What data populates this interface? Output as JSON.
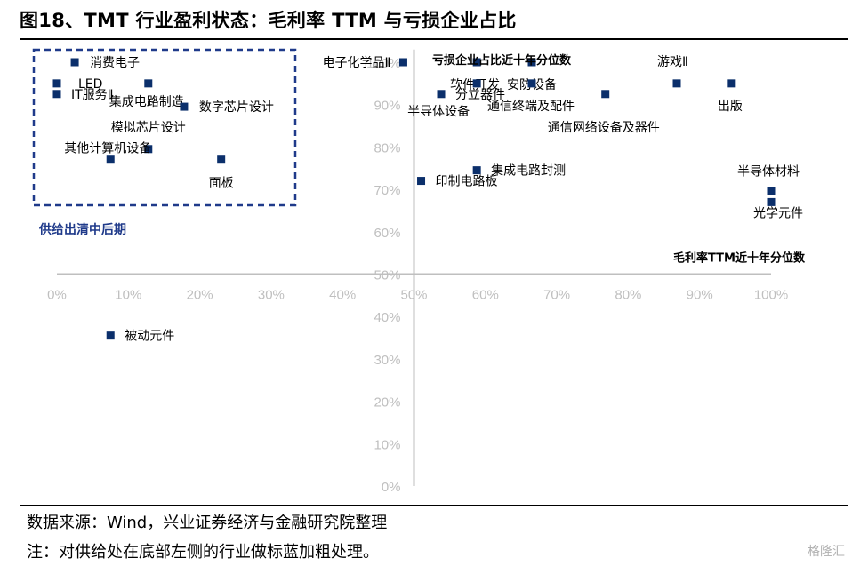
{
  "header": {
    "title": "图18、TMT 行业盈利状态：毛利率 TTM 与亏损企业占比"
  },
  "footer": {
    "source": "数据来源：Wind，兴业证券经济与金融研究院整理",
    "note": "注：对供给处在底部左侧的行业做标蓝加粗处理。",
    "brand": "格隆汇"
  },
  "colors": {
    "marker": "#0b2f6b",
    "highlight": "#1f3a8a",
    "axis": "#bfbfbf",
    "tick": "#bfbfbf"
  },
  "chart_data": {
    "type": "scatter",
    "xlabel": "毛利率TTM近十年分位数",
    "ylabel": "亏损企业占比近十年分位数",
    "xlim": [
      0,
      1
    ],
    "ylim": [
      0,
      1
    ],
    "x_ticks": [
      "0%",
      "10%",
      "20%",
      "30%",
      "40%",
      "50%",
      "60%",
      "70%",
      "80%",
      "90%",
      "100%"
    ],
    "y_ticks": [
      "0%",
      "10%",
      "20%",
      "30%",
      "40%",
      "50%",
      "60%",
      "70%",
      "80%",
      "90%",
      "100%"
    ],
    "annotation": "供给出清中后期",
    "points": [
      {
        "label": "消费电子",
        "x": 0.025,
        "y": 1.0
      },
      {
        "label": "LED",
        "x": 0.0,
        "y": 0.95
      },
      {
        "label": "IT服务Ⅱ",
        "x": 0.0,
        "y": 0.925
      },
      {
        "label": "集成电路制造",
        "x": 0.128,
        "y": 0.95
      },
      {
        "label": "数字芯片设计",
        "x": 0.178,
        "y": 0.895
      },
      {
        "label": "模拟芯片设计",
        "x": 0.128,
        "y": 0.795
      },
      {
        "label": "其他计算机设备",
        "x": 0.075,
        "y": 0.77
      },
      {
        "label": "面板",
        "x": 0.23,
        "y": 0.77
      },
      {
        "label": "电子化学品Ⅱ",
        "x": 0.485,
        "y": 1.0
      },
      {
        "label": "软件开发",
        "x": 0.588,
        "y": 1.0
      },
      {
        "label": "安防设备",
        "x": 0.665,
        "y": 1.0
      },
      {
        "label": "分立器件",
        "x": 0.538,
        "y": 0.925
      },
      {
        "label": "半导体设备",
        "x": 0.588,
        "y": 0.95
      },
      {
        "label": "通信终端及配件",
        "x": 0.665,
        "y": 0.95
      },
      {
        "label": "通信网络设备及器件",
        "x": 0.768,
        "y": 0.925
      },
      {
        "label": "游戏Ⅱ",
        "x": 0.868,
        "y": 0.95
      },
      {
        "label": "出版",
        "x": 0.945,
        "y": 0.95
      },
      {
        "label": "集成电路封测",
        "x": 0.588,
        "y": 0.745
      },
      {
        "label": "印制电路板",
        "x": 0.51,
        "y": 0.72
      },
      {
        "label": "半导体材料",
        "x": 1.0,
        "y": 0.695
      },
      {
        "label": "光学元件",
        "x": 1.0,
        "y": 0.67
      },
      {
        "label": "被动元件",
        "x": 0.075,
        "y": 0.355
      }
    ]
  }
}
